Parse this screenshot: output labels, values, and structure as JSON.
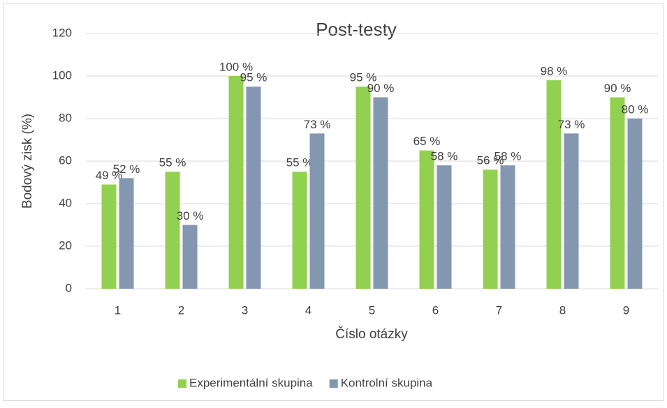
{
  "chart_data": {
    "type": "bar",
    "title": "Post-testy",
    "x_label": "Číslo otázky",
    "y_label": "Bodový zisk (%)",
    "categories": [
      "1",
      "2",
      "3",
      "4",
      "5",
      "6",
      "7",
      "8",
      "9"
    ],
    "series": [
      {
        "name": "Experimentální skupina",
        "color": "#92d050",
        "values": [
          49,
          55,
          100,
          55,
          95,
          65,
          56,
          98,
          90
        ],
        "value_labels": [
          "49 %",
          "55 %",
          "100 %",
          "55 %",
          "95 %",
          "65 %",
          "56 %",
          "98 %",
          "90 %"
        ]
      },
      {
        "name": "Kontrolní skupina",
        "color": "#8497b0",
        "values": [
          52,
          30,
          95,
          73,
          90,
          58,
          58,
          73,
          80
        ],
        "value_labels": [
          "52 %",
          "30 %",
          "95 %",
          "73 %",
          "90 %",
          "58 %",
          "58 %",
          "73 %",
          "80 %"
        ]
      }
    ],
    "ylim": [
      0,
      120
    ],
    "yticks": [
      0,
      20,
      40,
      60,
      80,
      100,
      120
    ],
    "grid": true,
    "legend": "bottom"
  }
}
